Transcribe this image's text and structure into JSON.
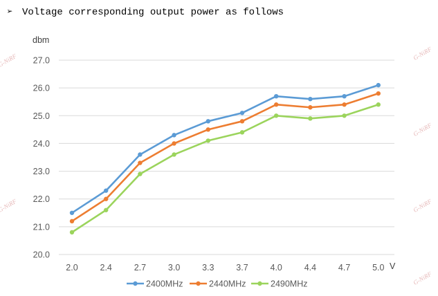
{
  "heading": {
    "bullet": "➢",
    "text": "Voltage corresponding output power as follows"
  },
  "watermark": "G-NiRF",
  "chart_data": {
    "type": "line",
    "title": "",
    "xlabel": "V",
    "ylabel": "dbm",
    "categories": [
      "2.0",
      "2.4",
      "2.7",
      "3.0",
      "3.3",
      "3.7",
      "4.0",
      "4.4",
      "4.7",
      "5.0"
    ],
    "yticks": [
      "20.0",
      "21.0",
      "22.0",
      "23.0",
      "24.0",
      "25.0",
      "26.0",
      "27.0"
    ],
    "ylim": [
      20,
      27
    ],
    "grid": true,
    "legend_position": "bottom",
    "series": [
      {
        "name": "2400MHz",
        "color": "#5b9bd5",
        "values": [
          21.5,
          22.3,
          23.6,
          24.3,
          24.8,
          25.1,
          25.7,
          25.6,
          25.7,
          26.1
        ]
      },
      {
        "name": "2440MHz",
        "color": "#ed7d31",
        "values": [
          21.2,
          22.0,
          23.3,
          24.0,
          24.5,
          24.8,
          25.4,
          25.3,
          25.4,
          25.8
        ]
      },
      {
        "name": "2490MHz",
        "color": "#9bd45c",
        "values": [
          20.8,
          21.6,
          22.9,
          23.6,
          24.1,
          24.4,
          25.0,
          24.9,
          25.0,
          25.4
        ]
      }
    ]
  }
}
